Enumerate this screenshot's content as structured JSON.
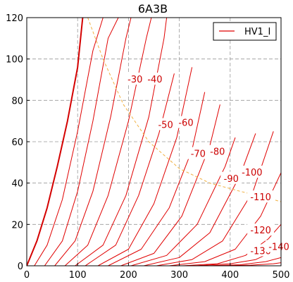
{
  "chart_data": {
    "type": "line",
    "title": "6A3B",
    "xlabel": "",
    "ylabel": "",
    "xlim": [
      0,
      500
    ],
    "ylim": [
      0,
      120
    ],
    "xticks": [
      0,
      100,
      200,
      300,
      400,
      500
    ],
    "yticks": [
      0,
      20,
      40,
      60,
      80,
      100,
      120
    ],
    "grid": true,
    "legend": {
      "position": "top-right",
      "entries": [
        "HV1_I"
      ]
    },
    "colors": {
      "curves": "#e00000",
      "zero_curve": "#d40000",
      "load_line": "#f0b040",
      "grid": "#999999"
    },
    "grid_curves": [
      {
        "label": "",
        "x": [
          0,
          20,
          40,
          60,
          80,
          100,
          110
        ],
        "y": [
          0,
          12,
          28,
          48,
          70,
          96,
          120
        ]
      },
      {
        "label": "",
        "x": [
          15,
          40,
          70,
          100,
          130,
          150
        ],
        "y": [
          0,
          10,
          32,
          65,
          104,
          120
        ]
      },
      {
        "label": "",
        "x": [
          35,
          70,
          100,
          130,
          160,
          180
        ],
        "y": [
          0,
          12,
          36,
          70,
          110,
          120
        ]
      },
      {
        "label": "-30",
        "x": [
          55,
          95,
          130,
          165,
          195,
          205
        ],
        "y": [
          0,
          12,
          36,
          72,
          110,
          120
        ]
      },
      {
        "label": "-40",
        "x": [
          75,
          120,
          160,
          200,
          235,
          245
        ],
        "y": [
          0,
          10,
          34,
          70,
          110,
          120
        ]
      },
      {
        "label": "",
        "x": [
          95,
          150,
          195,
          240,
          270,
          275
        ],
        "y": [
          0,
          10,
          34,
          72,
          110,
          120
        ]
      },
      {
        "label": "-50",
        "x": [
          115,
          175,
          220,
          260,
          290
        ],
        "y": [
          0,
          10,
          34,
          64,
          93
        ]
      },
      {
        "label": "-60",
        "x": [
          140,
          200,
          250,
          295,
          325
        ],
        "y": [
          0,
          8,
          30,
          62,
          96
        ]
      },
      {
        "label": "-70",
        "x": [
          160,
          225,
          280,
          325,
          350
        ],
        "y": [
          0,
          8,
          28,
          56,
          84
        ]
      },
      {
        "label": "-80",
        "x": [
          185,
          250,
          305,
          360,
          380
        ],
        "y": [
          0,
          6,
          24,
          58,
          78
        ]
      },
      {
        "label": "-90",
        "x": [
          205,
          275,
          335,
          390,
          410
        ],
        "y": [
          0,
          5,
          20,
          48,
          62
        ]
      },
      {
        "label": "-100",
        "x": [
          230,
          300,
          360,
          420,
          450
        ],
        "y": [
          0,
          4,
          16,
          44,
          64
        ]
      },
      {
        "label": "-110",
        "x": [
          255,
          325,
          385,
          445,
          485
        ],
        "y": [
          0,
          3,
          12,
          36,
          65
        ]
      },
      {
        "label": "-120",
        "x": [
          280,
          350,
          410,
          460,
          500
        ],
        "y": [
          0,
          2,
          8,
          24,
          45
        ]
      },
      {
        "label": "-130",
        "x": [
          305,
          375,
          430,
          475,
          500
        ],
        "y": [
          0,
          1,
          5,
          13,
          20
        ]
      },
      {
        "label": "-140",
        "x": [
          330,
          400,
          450,
          485,
          500
        ],
        "y": [
          0,
          1,
          3,
          7,
          9
        ]
      },
      {
        "label": "",
        "x": [
          350,
          420,
          470,
          500
        ],
        "y": [
          0,
          0.5,
          2,
          4
        ]
      },
      {
        "label": "",
        "x": [
          375,
          440,
          485,
          500
        ],
        "y": [
          0,
          0.3,
          1,
          1.5
        ]
      }
    ],
    "load_line": {
      "x": [
        120,
        150,
        190,
        240,
        300,
        360,
        420,
        470,
        500
      ],
      "y": [
        120,
        100,
        78,
        60,
        47,
        40,
        36,
        33,
        31
      ]
    },
    "curve_label_positions": [
      {
        "text": "-30",
        "x": 213,
        "y": 90
      },
      {
        "text": "-40",
        "x": 252,
        "y": 90
      },
      {
        "text": "-50",
        "x": 273,
        "y": 68
      },
      {
        "text": "-60",
        "x": 313,
        "y": 69
      },
      {
        "text": "-70",
        "x": 337,
        "y": 54
      },
      {
        "text": "-80",
        "x": 375,
        "y": 55
      },
      {
        "text": "-90",
        "x": 402,
        "y": 42
      },
      {
        "text": "-100",
        "x": 443,
        "y": 45
      },
      {
        "text": "-110",
        "x": 460,
        "y": 33
      },
      {
        "text": "-120",
        "x": 460,
        "y": 17
      },
      {
        "text": "-130",
        "x": 460,
        "y": 7
      },
      {
        "text": "-140",
        "x": 500,
        "y": 9
      }
    ]
  }
}
